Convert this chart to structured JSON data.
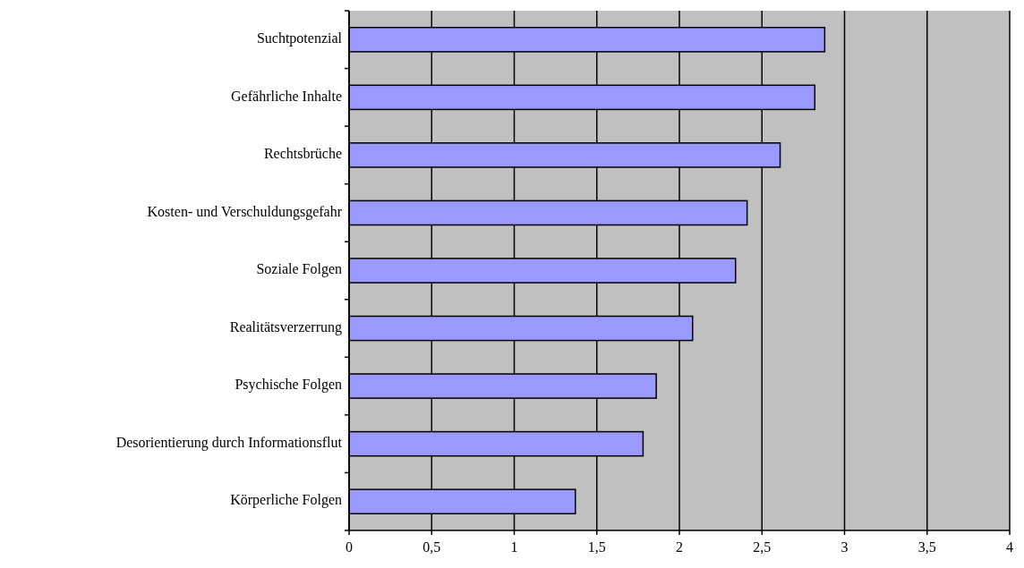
{
  "chart_data": {
    "type": "bar",
    "orientation": "horizontal",
    "categories": [
      "Suchtpotenzial",
      "Gefährliche Inhalte",
      "Rechtsbrüche",
      "Kosten- und Verschuldungsgefahr",
      "Soziale Folgen",
      "Realitätsverzerrung",
      "Psychische Folgen",
      "Desorientierung durch Informationsflut",
      "Körperliche Folgen"
    ],
    "values": [
      2.88,
      2.82,
      2.61,
      2.41,
      2.34,
      2.08,
      1.86,
      1.78,
      1.37
    ],
    "color": "#9999ff",
    "xlim": [
      0,
      4
    ],
    "xticks": [
      0,
      {
        "value": 0.5,
        "label": "0,5"
      },
      1,
      {
        "value": 1.5,
        "label": "1,5"
      },
      2,
      {
        "value": 2.5,
        "label": "2,5"
      },
      3,
      {
        "value": 3.5,
        "label": "3,5"
      },
      4
    ],
    "grid": "x"
  }
}
